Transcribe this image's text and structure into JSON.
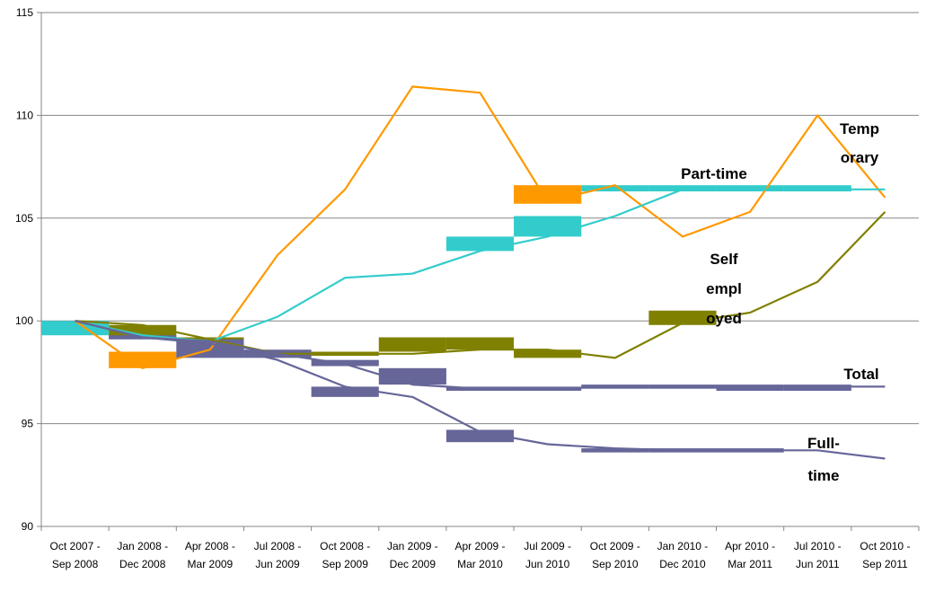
{
  "chart_data": {
    "type": "line",
    "ylim": [
      90,
      115
    ],
    "yticks": [
      "90",
      "95",
      "100",
      "105",
      "110",
      "115"
    ],
    "categories": [
      [
        "Oct 2007 -",
        "Sep 2008"
      ],
      [
        "Jan 2008 -",
        "Dec 2008"
      ],
      [
        "Apr 2008 -",
        "Mar 2009"
      ],
      [
        "Jul 2008 -",
        "Jun 2009"
      ],
      [
        "Oct 2008 -",
        "Sep 2009"
      ],
      [
        "Jan 2009 -",
        "Dec 2009"
      ],
      [
        "Apr 2009 -",
        "Mar 2010"
      ],
      [
        "Jul 2009 -",
        "Jun 2010"
      ],
      [
        "Oct 2009 -",
        "Sep 2010"
      ],
      [
        "Jan 2010 -",
        "Dec 2010"
      ],
      [
        "Apr 2010 -",
        "Mar 2011"
      ],
      [
        "Jul 2010 -",
        "Jun 2011"
      ],
      [
        "Oct 2010 -",
        "Sep 2011"
      ]
    ],
    "series": [
      {
        "name": "Temporary",
        "label_lines": [
          "Temp",
          "orary"
        ],
        "color": "#ff9900",
        "values": [
          100,
          97.7,
          98.6,
          103.2,
          106.4,
          111.4,
          111.1,
          105.8,
          106.6,
          104.1,
          105.3,
          110.0,
          106.0
        ],
        "bars": [
          [
            1,
            97.7,
            98.5
          ],
          [
            7,
            105.7,
            106.6
          ]
        ]
      },
      {
        "name": "Part-time",
        "label_lines": [
          "Part-time"
        ],
        "color": "#33cccc",
        "values": [
          100,
          99.3,
          99.0,
          100.2,
          102.1,
          102.3,
          103.4,
          104.1,
          105.1,
          106.4,
          106.4,
          106.4,
          106.4
        ],
        "bars": [
          [
            0,
            99.3,
            100.0
          ],
          [
            6,
            103.4,
            104.1
          ],
          [
            7,
            104.1,
            105.1
          ],
          [
            8,
            106.3,
            106.6
          ],
          [
            9,
            106.3,
            106.6
          ],
          [
            10,
            106.3,
            106.6
          ],
          [
            11,
            106.3,
            106.6
          ]
        ]
      },
      {
        "name": "Self employed",
        "label_lines": [
          "Self",
          "empl",
          "oyed"
        ],
        "color": "#808000",
        "values": [
          100,
          99.8,
          99.1,
          98.4,
          98.4,
          98.4,
          98.6,
          98.6,
          98.2,
          99.9,
          100.4,
          101.9,
          105.3
        ],
        "bars": [
          [
            1,
            99.2,
            99.8
          ],
          [
            2,
            99.0,
            99.2
          ],
          [
            3,
            98.3,
            98.5
          ],
          [
            4,
            98.3,
            98.5
          ],
          [
            5,
            98.5,
            99.2
          ],
          [
            6,
            98.6,
            99.2
          ],
          [
            7,
            98.2,
            98.6
          ],
          [
            9,
            99.8,
            100.5
          ]
        ]
      },
      {
        "name": "Total",
        "label_lines": [
          "Total"
        ],
        "color": "#666699",
        "values": [
          100,
          99.2,
          99.0,
          98.4,
          97.9,
          96.9,
          96.7,
          96.7,
          96.8,
          96.8,
          96.8,
          96.8,
          96.8
        ],
        "bars": [
          [
            1,
            99.1,
            99.3
          ],
          [
            2,
            98.2,
            99.1
          ],
          [
            3,
            98.2,
            98.6
          ],
          [
            4,
            97.8,
            98.1
          ],
          [
            5,
            96.9,
            97.7
          ],
          [
            6,
            96.6,
            96.8
          ],
          [
            7,
            96.6,
            96.8
          ],
          [
            8,
            96.7,
            96.9
          ],
          [
            9,
            96.7,
            96.9
          ],
          [
            10,
            96.6,
            96.9
          ],
          [
            11,
            96.6,
            96.9
          ]
        ]
      },
      {
        "name": "Full-time",
        "label_lines": [
          "Full-",
          "time"
        ],
        "color": "#666699",
        "values": [
          100,
          99.2,
          98.9,
          98.1,
          96.8,
          96.3,
          94.6,
          94.0,
          93.8,
          93.7,
          93.7,
          93.7,
          93.3
        ],
        "bars": [
          [
            4,
            96.3,
            96.8
          ],
          [
            6,
            94.1,
            94.7
          ],
          [
            8,
            93.6,
            93.8
          ],
          [
            9,
            93.6,
            93.8
          ],
          [
            10,
            93.6,
            93.8
          ]
        ]
      }
    ],
    "grid": true,
    "legend": "none"
  }
}
